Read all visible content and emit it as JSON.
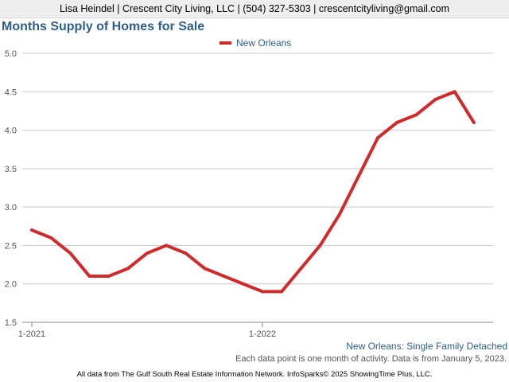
{
  "header": {
    "contact": "Lisa Heindel | Crescent City Living, LLC | (504) 327-5303 | crescentcityliving@gmail.com"
  },
  "chart_data": {
    "type": "line",
    "title": "Months Supply of Homes for Sale",
    "xlabel": "",
    "ylabel": "",
    "x": [
      "2021-01",
      "2021-02",
      "2021-03",
      "2021-04",
      "2021-05",
      "2021-06",
      "2021-07",
      "2021-08",
      "2021-09",
      "2021-10",
      "2021-11",
      "2021-12",
      "2022-01",
      "2022-02",
      "2022-03",
      "2022-04",
      "2022-05",
      "2022-06",
      "2022-07",
      "2022-08",
      "2022-09",
      "2022-10",
      "2022-11",
      "2022-12"
    ],
    "x_tick_labels": [
      {
        "at": "2021-01",
        "label": "1-2021"
      },
      {
        "at": "2022-01",
        "label": "1-2022"
      }
    ],
    "y_ticks": [
      "1.5",
      "2.0",
      "2.5",
      "3.0",
      "3.5",
      "4.0",
      "4.5",
      "5.0"
    ],
    "ylim": [
      1.5,
      5.0
    ],
    "grid": "horizontal",
    "legend_position": "top-center",
    "series": [
      {
        "name": "New Orleans",
        "color": "#d12a2a",
        "values": [
          2.7,
          2.6,
          2.4,
          2.1,
          2.1,
          2.2,
          2.4,
          2.5,
          2.4,
          2.2,
          2.1,
          2.0,
          1.9,
          1.9,
          2.2,
          2.5,
          2.9,
          3.4,
          3.9,
          4.1,
          4.2,
          4.4,
          4.5,
          4.1
        ]
      }
    ]
  },
  "caption": "New Orleans: Single Family Detached",
  "note": "Each data point is one month of activity. Data is from January 5, 2023.",
  "footer": "All data from The Gulf South Real Estate Information Network. InfoSparks© 2025 ShowingTime Plus, LLC."
}
